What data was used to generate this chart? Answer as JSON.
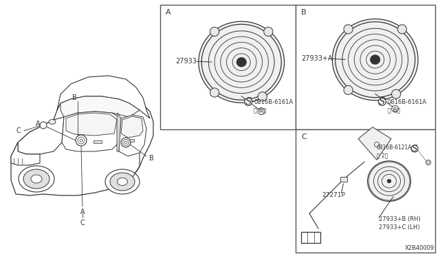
{
  "bg_color": "#ffffff",
  "panel_bg": "#ffffff",
  "border_color": "#555555",
  "line_color": "#333333",
  "title_code": "X2B40009",
  "panel_A_label": "A",
  "panel_B_label": "B",
  "panel_C_label": "C",
  "part_27933": "27933",
  "part_27933A": "27933+A",
  "part_08168_6161A": "0816B-6161A\n〈 6〉",
  "part_08168_6121A": "0816B-6121A\n〈 2〉",
  "part_27271P": "27271P",
  "part_27933B": "27933+B (RH)",
  "part_27933C": "27933+C (LH)",
  "label_A": "A",
  "label_B": "B",
  "label_C": "C"
}
